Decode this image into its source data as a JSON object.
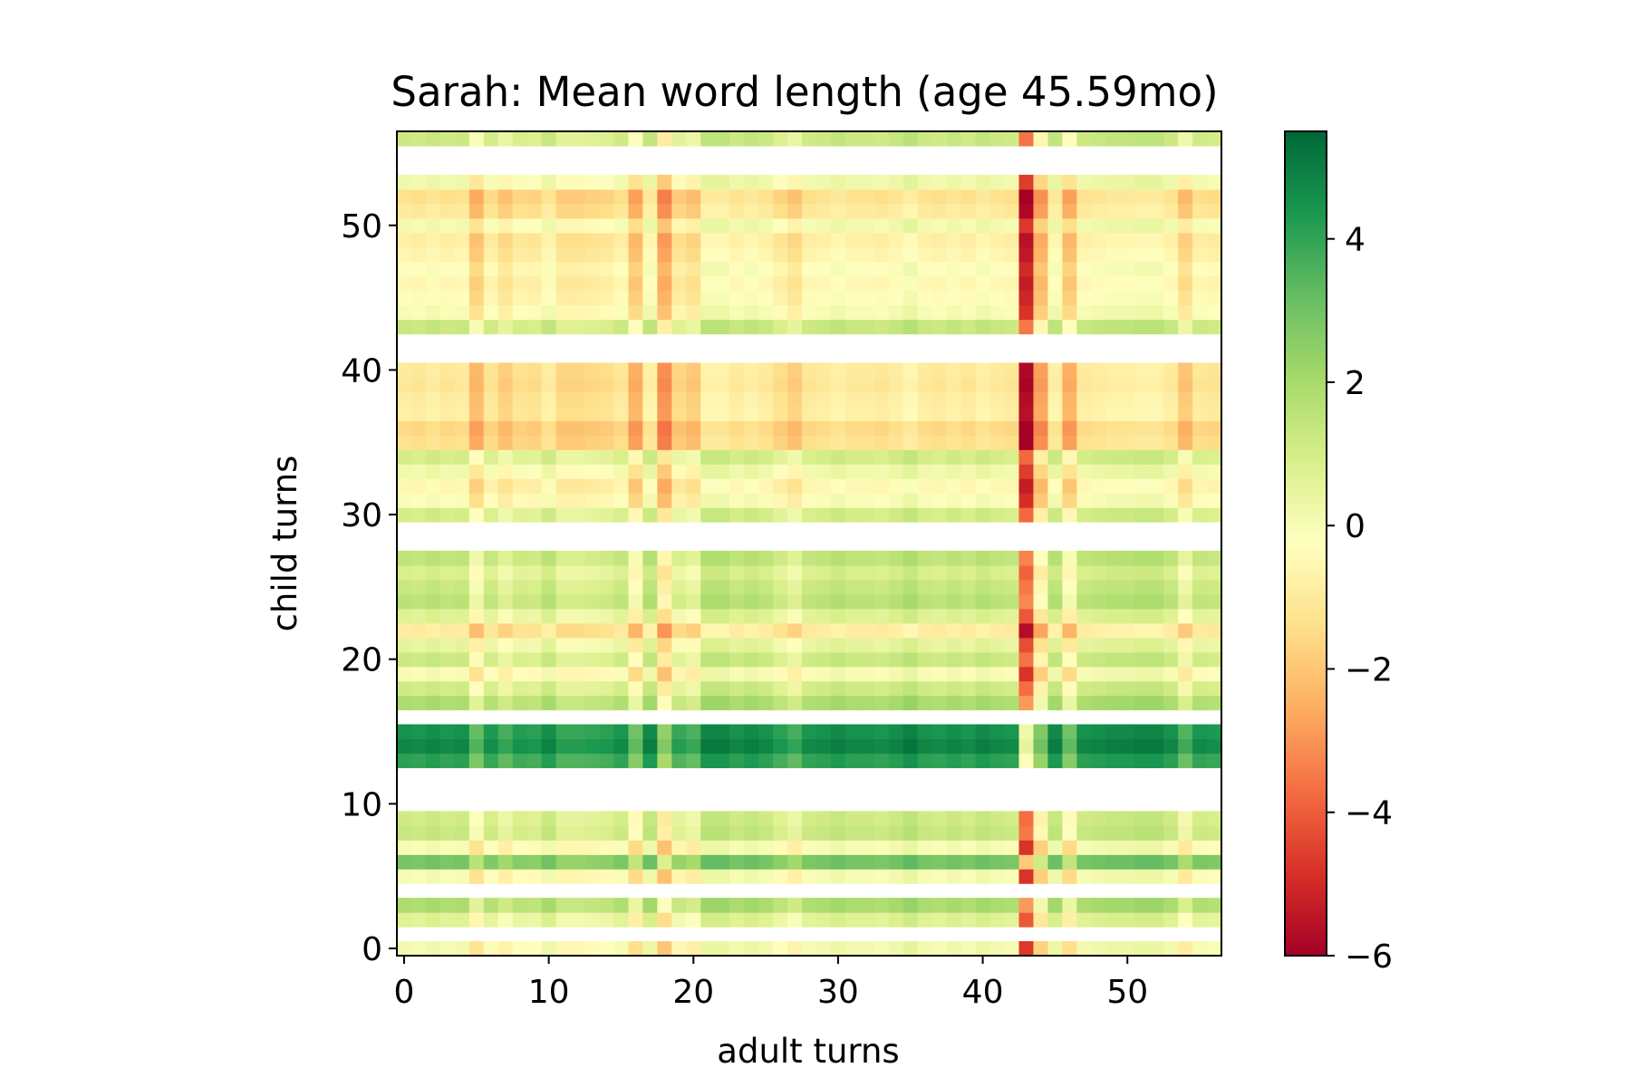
{
  "chart_data": {
    "type": "heatmap",
    "title": "Sarah: Mean word length (age 45.59mo)",
    "xlabel": "adult turns",
    "ylabel": "child turns",
    "xlim": [
      -0.5,
      56.5
    ],
    "ylim": [
      -0.5,
      56.5
    ],
    "x_ticks": [
      0,
      10,
      20,
      30,
      40,
      50
    ],
    "y_ticks": [
      0,
      10,
      20,
      30,
      40,
      50
    ],
    "colormap": "RdYlGn",
    "colorbar": {
      "vmin": -6,
      "vmax": 5.5,
      "ticks": [
        -6,
        -4,
        -2,
        0,
        2,
        4
      ]
    },
    "n_adult_turns": 57,
    "n_child_turns": 57,
    "adult_offsets": [
      0.3,
      0.2,
      0.4,
      0.2,
      0.3,
      -1.0,
      0.1,
      -0.5,
      0.0,
      -0.1,
      0.4,
      -0.3,
      -0.3,
      -0.2,
      -0.1,
      0.2,
      -1.2,
      0.5,
      -1.8,
      -0.3,
      -0.6,
      0.6,
      0.6,
      0.3,
      0.5,
      0.3,
      -0.1,
      -0.5,
      0.2,
      0.3,
      0.5,
      0.3,
      0.3,
      0.2,
      0.4,
      0.7,
      0.3,
      0.2,
      0.4,
      0.2,
      0.5,
      0.3,
      0.2,
      -4.5,
      -1.5,
      0.5,
      -1.2,
      0.3,
      0.4,
      0.5,
      0.5,
      0.6,
      0.6,
      0.3,
      -0.7,
      0.2,
      0.1
    ],
    "child_levels": [
      {
        "row": 0,
        "value": -0.2
      },
      {
        "row": 1,
        "value": null
      },
      {
        "row": 2,
        "value": 0.4
      },
      {
        "row": 3,
        "value": 1.6
      },
      {
        "row": 4,
        "value": null
      },
      {
        "row": 5,
        "value": -0.3
      },
      {
        "row": 6,
        "value": 2.6
      },
      {
        "row": 7,
        "value": -0.3
      },
      {
        "row": 8,
        "value": 1.0
      },
      {
        "row": 9,
        "value": 0.8
      },
      {
        "row": 10,
        "value": null
      },
      {
        "row": 11,
        "value": null
      },
      {
        "row": 12,
        "value": null
      },
      {
        "row": 13,
        "value": 3.8
      },
      {
        "row": 14,
        "value": 4.5
      },
      {
        "row": 15,
        "value": 4.2
      },
      {
        "row": 16,
        "value": null
      },
      {
        "row": 17,
        "value": 1.6
      },
      {
        "row": 18,
        "value": 0.8
      },
      {
        "row": 19,
        "value": -0.3
      },
      {
        "row": 20,
        "value": 0.9
      },
      {
        "row": 21,
        "value": 0.2
      },
      {
        "row": 22,
        "value": -1.2
      },
      {
        "row": 23,
        "value": 0.4
      },
      {
        "row": 24,
        "value": 1.3
      },
      {
        "row": 25,
        "value": 1.0
      },
      {
        "row": 26,
        "value": 0.6
      },
      {
        "row": 27,
        "value": 1.2
      },
      {
        "row": 28,
        "value": null
      },
      {
        "row": 29,
        "value": null
      },
      {
        "row": 30,
        "value": 0.7
      },
      {
        "row": 31,
        "value": -0.4
      },
      {
        "row": 32,
        "value": -0.8
      },
      {
        "row": 33,
        "value": -0.1
      },
      {
        "row": 34,
        "value": 0.7
      },
      {
        "row": 35,
        "value": -1.6
      },
      {
        "row": 36,
        "value": -1.8
      },
      {
        "row": 37,
        "value": -1.1
      },
      {
        "row": 38,
        "value": -1.2
      },
      {
        "row": 39,
        "value": -1.4
      },
      {
        "row": 40,
        "value": -1.3
      },
      {
        "row": 41,
        "value": null
      },
      {
        "row": 42,
        "value": null
      },
      {
        "row": 43,
        "value": 1.0
      },
      {
        "row": 44,
        "value": -0.3
      },
      {
        "row": 45,
        "value": -0.6
      },
      {
        "row": 46,
        "value": -0.8
      },
      {
        "row": 47,
        "value": -0.5
      },
      {
        "row": 48,
        "value": -0.9
      },
      {
        "row": 49,
        "value": -1.1
      },
      {
        "row": 50,
        "value": -0.2
      },
      {
        "row": 51,
        "value": -1.3
      },
      {
        "row": 52,
        "value": -1.6
      },
      {
        "row": 53,
        "value": -0.1
      },
      {
        "row": 54,
        "value": null
      },
      {
        "row": 55,
        "value": null
      },
      {
        "row": 56,
        "value": 0.9
      }
    ]
  }
}
